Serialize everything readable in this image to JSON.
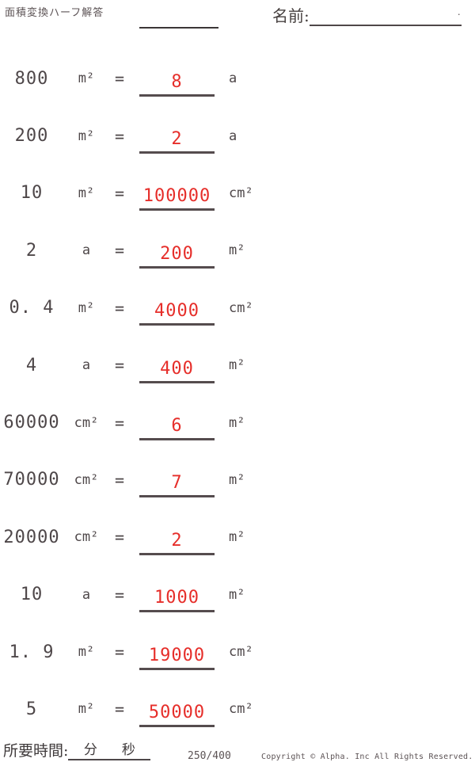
{
  "header": {
    "title": "面積変換ハーフ解答",
    "name_label": "名前:",
    "name_line_end": "."
  },
  "problems": [
    {
      "value": "800",
      "unit_from": "m²",
      "equals": "=",
      "answer": "8",
      "unit_to": "a"
    },
    {
      "value": "200",
      "unit_from": "m²",
      "equals": "=",
      "answer": "2",
      "unit_to": "a"
    },
    {
      "value": "10",
      "unit_from": "m²",
      "equals": "=",
      "answer": "100000",
      "unit_to": "cm²"
    },
    {
      "value": "2",
      "unit_from": "a",
      "equals": "=",
      "answer": "200",
      "unit_to": "m²"
    },
    {
      "value": "0. 4",
      "unit_from": "m²",
      "equals": "=",
      "answer": "4000",
      "unit_to": "cm²"
    },
    {
      "value": "4",
      "unit_from": "a",
      "equals": "=",
      "answer": "400",
      "unit_to": "m²"
    },
    {
      "value": "60000",
      "unit_from": "cm²",
      "equals": "=",
      "answer": "6",
      "unit_to": "m²"
    },
    {
      "value": "70000",
      "unit_from": "cm²",
      "equals": "=",
      "answer": "7",
      "unit_to": "m²"
    },
    {
      "value": "20000",
      "unit_from": "cm²",
      "equals": "=",
      "answer": "2",
      "unit_to": "m²"
    },
    {
      "value": "10",
      "unit_from": "a",
      "equals": "=",
      "answer": "1000",
      "unit_to": "m²"
    },
    {
      "value": "1. 9",
      "unit_from": "m²",
      "equals": "=",
      "answer": "19000",
      "unit_to": "cm²"
    },
    {
      "value": "5",
      "unit_from": "m²",
      "equals": "=",
      "answer": "50000",
      "unit_to": "cm²"
    }
  ],
  "footer": {
    "time_label": "所要時間:",
    "minutes_label": "分",
    "seconds_label": "秒",
    "progress": "250/400",
    "copyright": "Copyright © Alpha. Inc All Rights Reserved."
  },
  "colors": {
    "answer_red": "#e62e2a",
    "ink": "#4e4749",
    "line": "#554c4e"
  }
}
